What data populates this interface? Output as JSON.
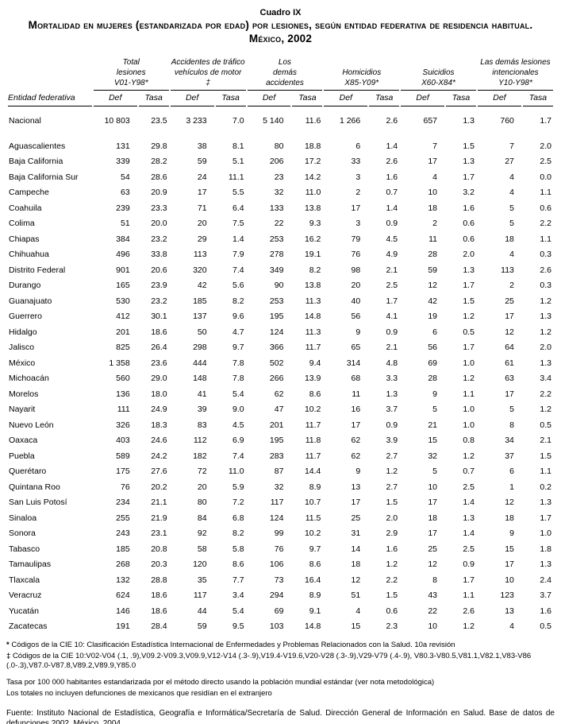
{
  "header": {
    "kicker": "Cuadro IX",
    "title": "Mortalidad en mujeres (estandarizada por edad) por lesiones, según entidad federativa de residencia habitual. México, 2002"
  },
  "table": {
    "row_header": "Entidad federativa",
    "sub_def": "Def",
    "sub_tasa": "Tasa",
    "groups": [
      {
        "label": "Total\nlesiones\nV01-Y98*"
      },
      {
        "label": "Accidentes de tráfico\nvehículos de motor\n‡"
      },
      {
        "label": "Los\ndemás\naccidentes"
      },
      {
        "label": "Homicidios\nX85-Y09*"
      },
      {
        "label": "Suicidios\nX60-X84*"
      },
      {
        "label": "Las demás lesiones\nintencionales\nY10-Y98*"
      }
    ],
    "rows": [
      {
        "name": "Nacional",
        "values": [
          "10 803",
          "23.5",
          "3 233",
          "7.0",
          "5 140",
          "11.6",
          "1 266",
          "2.6",
          "657",
          "1.3",
          "760",
          "1.7"
        ]
      },
      {
        "name": "Aguascalientes",
        "values": [
          "131",
          "29.8",
          "38",
          "8.1",
          "80",
          "18.8",
          "6",
          "1.4",
          "7",
          "1.5",
          "7",
          "2.0"
        ]
      },
      {
        "name": "Baja California",
        "values": [
          "339",
          "28.2",
          "59",
          "5.1",
          "206",
          "17.2",
          "33",
          "2.6",
          "17",
          "1.3",
          "27",
          "2.5"
        ]
      },
      {
        "name": "Baja California Sur",
        "values": [
          "54",
          "28.6",
          "24",
          "11.1",
          "23",
          "14.2",
          "3",
          "1.6",
          "4",
          "1.7",
          "4",
          "0.0"
        ]
      },
      {
        "name": "Campeche",
        "values": [
          "63",
          "20.9",
          "17",
          "5.5",
          "32",
          "11.0",
          "2",
          "0.7",
          "10",
          "3.2",
          "4",
          "1.1"
        ]
      },
      {
        "name": "Coahuila",
        "values": [
          "239",
          "23.3",
          "71",
          "6.4",
          "133",
          "13.8",
          "17",
          "1.4",
          "18",
          "1.6",
          "5",
          "0.6"
        ]
      },
      {
        "name": "Colima",
        "values": [
          "51",
          "20.0",
          "20",
          "7.5",
          "22",
          "9.3",
          "3",
          "0.9",
          "2",
          "0.6",
          "5",
          "2.2"
        ]
      },
      {
        "name": "Chiapas",
        "values": [
          "384",
          "23.2",
          "29",
          "1.4",
          "253",
          "16.2",
          "79",
          "4.5",
          "11",
          "0.6",
          "18",
          "1.1"
        ]
      },
      {
        "name": "Chihuahua",
        "values": [
          "496",
          "33.8",
          "113",
          "7.9",
          "278",
          "19.1",
          "76",
          "4.9",
          "28",
          "2.0",
          "4",
          "0.3"
        ]
      },
      {
        "name": "Distrito Federal",
        "values": [
          "901",
          "20.6",
          "320",
          "7.4",
          "349",
          "8.2",
          "98",
          "2.1",
          "59",
          "1.3",
          "113",
          "2.6"
        ]
      },
      {
        "name": "Durango",
        "values": [
          "165",
          "23.9",
          "42",
          "5.6",
          "90",
          "13.8",
          "20",
          "2.5",
          "12",
          "1.7",
          "2",
          "0.3"
        ]
      },
      {
        "name": "Guanajuato",
        "values": [
          "530",
          "23.2",
          "185",
          "8.2",
          "253",
          "11.3",
          "40",
          "1.7",
          "42",
          "1.5",
          "25",
          "1.2"
        ]
      },
      {
        "name": "Guerrero",
        "values": [
          "412",
          "30.1",
          "137",
          "9.6",
          "195",
          "14.8",
          "56",
          "4.1",
          "19",
          "1.2",
          "17",
          "1.3"
        ]
      },
      {
        "name": "Hidalgo",
        "values": [
          "201",
          "18.6",
          "50",
          "4.7",
          "124",
          "11.3",
          "9",
          "0.9",
          "6",
          "0.5",
          "12",
          "1.2"
        ]
      },
      {
        "name": "Jalisco",
        "values": [
          "825",
          "26.4",
          "298",
          "9.7",
          "366",
          "11.7",
          "65",
          "2.1",
          "56",
          "1.7",
          "64",
          "2.0"
        ]
      },
      {
        "name": "México",
        "values": [
          "1 358",
          "23.6",
          "444",
          "7.8",
          "502",
          "9.4",
          "314",
          "4.8",
          "69",
          "1.0",
          "61",
          "1.3"
        ]
      },
      {
        "name": "Michoacán",
        "values": [
          "560",
          "29.0",
          "148",
          "7.8",
          "266",
          "13.9",
          "68",
          "3.3",
          "28",
          "1.2",
          "63",
          "3.4"
        ]
      },
      {
        "name": "Morelos",
        "values": [
          "136",
          "18.0",
          "41",
          "5.4",
          "62",
          "8.6",
          "11",
          "1.3",
          "9",
          "1.1",
          "17",
          "2.2"
        ]
      },
      {
        "name": "Nayarit",
        "values": [
          "111",
          "24.9",
          "39",
          "9.0",
          "47",
          "10.2",
          "16",
          "3.7",
          "5",
          "1.0",
          "5",
          "1.2"
        ]
      },
      {
        "name": "Nuevo León",
        "values": [
          "326",
          "18.3",
          "83",
          "4.5",
          "201",
          "11.7",
          "17",
          "0.9",
          "21",
          "1.0",
          "8",
          "0.5"
        ]
      },
      {
        "name": "Oaxaca",
        "values": [
          "403",
          "24.6",
          "112",
          "6.9",
          "195",
          "11.8",
          "62",
          "3.9",
          "15",
          "0.8",
          "34",
          "2.1"
        ]
      },
      {
        "name": "Puebla",
        "values": [
          "589",
          "24.2",
          "182",
          "7.4",
          "283",
          "11.7",
          "62",
          "2.7",
          "32",
          "1.2",
          "37",
          "1.5"
        ]
      },
      {
        "name": "Querétaro",
        "values": [
          "175",
          "27.6",
          "72",
          "11.0",
          "87",
          "14.4",
          "9",
          "1.2",
          "5",
          "0.7",
          "6",
          "1.1"
        ]
      },
      {
        "name": "Quintana Roo",
        "values": [
          "76",
          "20.2",
          "20",
          "5.9",
          "32",
          "8.9",
          "13",
          "2.7",
          "10",
          "2.5",
          "1",
          "0.2"
        ]
      },
      {
        "name": "San Luis Potosí",
        "values": [
          "234",
          "21.1",
          "80",
          "7.2",
          "117",
          "10.7",
          "17",
          "1.5",
          "17",
          "1.4",
          "12",
          "1.3"
        ]
      },
      {
        "name": "Sinaloa",
        "values": [
          "255",
          "21.9",
          "84",
          "6.8",
          "124",
          "11.5",
          "25",
          "2.0",
          "18",
          "1.3",
          "18",
          "1.7"
        ]
      },
      {
        "name": "Sonora",
        "values": [
          "243",
          "23.1",
          "92",
          "8.2",
          "99",
          "10.2",
          "31",
          "2.9",
          "17",
          "1.4",
          "9",
          "1.0"
        ]
      },
      {
        "name": "Tabasco",
        "values": [
          "185",
          "20.8",
          "58",
          "5.8",
          "76",
          "9.7",
          "14",
          "1.6",
          "25",
          "2.5",
          "15",
          "1.8"
        ]
      },
      {
        "name": "Tamaulipas",
        "values": [
          "268",
          "20.3",
          "120",
          "8.6",
          "106",
          "8.6",
          "18",
          "1.2",
          "12",
          "0.9",
          "17",
          "1.3"
        ]
      },
      {
        "name": "Tlaxcala",
        "values": [
          "132",
          "28.8",
          "35",
          "7.7",
          "73",
          "16.4",
          "12",
          "2.2",
          "8",
          "1.7",
          "10",
          "2.4"
        ]
      },
      {
        "name": "Veracruz",
        "values": [
          "624",
          "18.6",
          "117",
          "3.4",
          "294",
          "8.9",
          "51",
          "1.5",
          "43",
          "1.1",
          "123",
          "3.7"
        ]
      },
      {
        "name": "Yucatán",
        "values": [
          "146",
          "18.6",
          "44",
          "5.4",
          "69",
          "9.1",
          "4",
          "0.6",
          "22",
          "2.6",
          "13",
          "1.6"
        ]
      },
      {
        "name": "Zacatecas",
        "values": [
          "191",
          "28.4",
          "59",
          "9.5",
          "103",
          "14.8",
          "15",
          "2.3",
          "10",
          "1.2",
          "4",
          "0.5"
        ]
      }
    ]
  },
  "footnotes": {
    "star_marker": "*",
    "star_text": "Códigos de la CIE 10: Clasificación Estadística Internacional de Enfermedades y Problemas Relacionados con la Salud. 10a revisión",
    "dagger_marker": "‡",
    "dagger_text": "Códigos de la CIE 10:V02-V04 (.1, .9),V09.2-V09.3,V09.9,V12-V14 (.3-.9),V19.4-V19.6,V20-V28 (.3-.9),V29-V79 (.4-.9), V80.3-V80.5,V81.1,V82.1,V83-V86 (.0-.3),V87.0-V87.8,V89.2,V89.9,Y85.0",
    "rate_note": "Tasa por 100 000 habitantes estandarizada por el método directo usando la población mundial estándar (ver nota metodológica)",
    "totals_note": "Los totales no incluyen defunciones de mexicanos que residían en el extranjero",
    "source": "Fuente: Instituto Nacional de Estadística, Geografía e Informática/Secretaría de Salud. Dirección General de Información en Salud. Base de datos de defunciones 2002. México, 2004"
  }
}
